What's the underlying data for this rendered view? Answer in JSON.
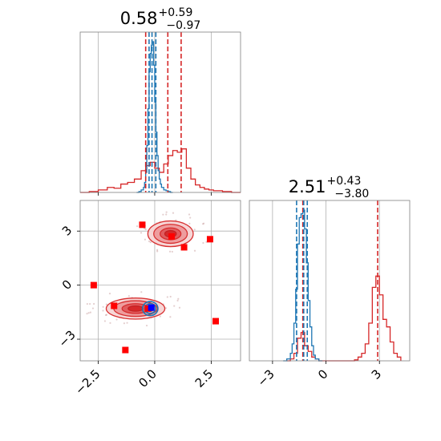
{
  "chart_data": [
    {
      "type": "histogram",
      "panel": "marginal-1",
      "title": {
        "value": "0.58",
        "upper": "+0.59",
        "lower": "−0.97"
      },
      "xlim": [
        -3.3,
        3.8
      ],
      "x_ticks": [
        -2.5,
        0.0,
        2.5
      ],
      "grid": true,
      "red_quantile_lines": [
        -0.4,
        0.58,
        1.17
      ],
      "blue_quantile_lines": [
        -0.25,
        -0.12,
        0.05
      ],
      "series": [
        {
          "color": "#d62728",
          "x": [
            -3.3,
            -2.9,
            -2.5,
            -2.1,
            -1.8,
            -1.5,
            -1.2,
            -0.9,
            -0.6,
            -0.4,
            -0.2,
            0.0,
            0.2,
            0.4,
            0.6,
            0.8,
            1.0,
            1.2,
            1.4,
            1.6,
            1.8,
            2.0,
            2.2,
            2.4,
            2.6,
            3.0,
            3.4,
            3.8
          ],
          "values": [
            0.0,
            0.005,
            0.015,
            0.03,
            0.025,
            0.05,
            0.06,
            0.08,
            0.13,
            0.16,
            0.18,
            0.145,
            0.12,
            0.17,
            0.22,
            0.25,
            0.24,
            0.26,
            0.145,
            0.08,
            0.045,
            0.03,
            0.02,
            0.015,
            0.01,
            0.005,
            0.0,
            0.0
          ]
        },
        {
          "color": "#1f77b4",
          "x": [
            -0.8,
            -0.7,
            -0.6,
            -0.5,
            -0.45,
            -0.4,
            -0.35,
            -0.3,
            -0.25,
            -0.2,
            -0.15,
            -0.1,
            -0.05,
            0.0,
            0.05,
            0.1,
            0.15,
            0.2,
            0.25,
            0.3,
            0.4,
            0.5,
            0.6,
            0.7,
            0.8
          ],
          "values": [
            0.0,
            0.005,
            0.015,
            0.03,
            0.06,
            0.12,
            0.28,
            0.5,
            0.72,
            0.83,
            0.88,
            0.9,
            0.76,
            0.54,
            0.36,
            0.22,
            0.13,
            0.08,
            0.05,
            0.03,
            0.015,
            0.01,
            0.005,
            0.0,
            0.0
          ]
        }
      ]
    },
    {
      "type": "histogram",
      "panel": "marginal-2",
      "title": {
        "value": "2.51",
        "upper": "+0.43",
        "lower": "−3.80"
      },
      "xlim": [
        -4.3,
        4.7
      ],
      "x_ticks": [
        -3,
        0,
        3
      ],
      "grid": true,
      "red_quantile_lines": [
        -1.3,
        2.9
      ],
      "blue_quantile_lines": [
        -1.65,
        -1.25,
        -1.05
      ],
      "series": [
        {
          "color": "#d62728",
          "x": [
            -2.2,
            -2.0,
            -1.8,
            -1.6,
            -1.4,
            -1.2,
            -1.0,
            -0.8,
            -0.6,
            -0.4,
            1.6,
            1.8,
            2.0,
            2.2,
            2.4,
            2.6,
            2.8,
            3.0,
            3.2,
            3.4,
            3.6,
            3.8,
            4.0,
            4.2
          ],
          "values": [
            0.0,
            0.01,
            0.04,
            0.12,
            0.15,
            0.08,
            0.05,
            0.02,
            0.01,
            0.0,
            0.005,
            0.02,
            0.04,
            0.09,
            0.2,
            0.39,
            0.45,
            0.35,
            0.22,
            0.18,
            0.1,
            0.04,
            0.02,
            0.0
          ]
        },
        {
          "color": "#1f77b4",
          "x": [
            -2.4,
            -2.2,
            -2.0,
            -1.9,
            -1.8,
            -1.7,
            -1.6,
            -1.5,
            -1.4,
            -1.3,
            -1.2,
            -1.1,
            -1.0,
            -0.9,
            -0.8,
            -0.7,
            -0.6,
            -0.4,
            -0.2
          ],
          "values": [
            0.0,
            0.01,
            0.04,
            0.09,
            0.2,
            0.38,
            0.62,
            0.76,
            0.78,
            0.8,
            0.7,
            0.52,
            0.32,
            0.18,
            0.08,
            0.03,
            0.01,
            0.0,
            0.0
          ]
        }
      ]
    },
    {
      "type": "scatter",
      "panel": "joint",
      "xlim": [
        -3.3,
        3.8
      ],
      "ylim": [
        -4.2,
        4.7
      ],
      "x_ticks": [
        -2.5,
        0.0,
        2.5
      ],
      "y_ticks": [
        -3,
        0,
        3
      ],
      "grid": true,
      "red_markers": [
        {
          "x": -2.7,
          "y": 0.0
        },
        {
          "x": -1.8,
          "y": -1.15
        },
        {
          "x": -1.3,
          "y": -3.6
        },
        {
          "x": -0.55,
          "y": 3.35
        },
        {
          "x": -0.3,
          "y": -1.3
        },
        {
          "x": 0.75,
          "y": 2.7
        },
        {
          "x": 1.3,
          "y": 2.1
        },
        {
          "x": 2.45,
          "y": 2.55
        },
        {
          "x": 2.7,
          "y": -2.0
        }
      ],
      "blue_markers": [
        {
          "x": -0.15,
          "y": -1.25
        }
      ],
      "red_density_regions": [
        {
          "center": [
            0.7,
            2.85
          ],
          "spread": [
            1.2,
            0.85
          ]
        },
        {
          "center": [
            -0.85,
            -1.3
          ],
          "spread": [
            1.55,
            0.7
          ]
        }
      ],
      "blue_density_regions": [
        {
          "center": [
            -0.2,
            -1.3
          ],
          "spread": [
            0.35,
            0.4
          ]
        }
      ],
      "colors": {
        "red": "#d62728",
        "blue": "#1f77b4",
        "marker_red": "#ff0000",
        "marker_blue": "#0000ff"
      }
    }
  ]
}
